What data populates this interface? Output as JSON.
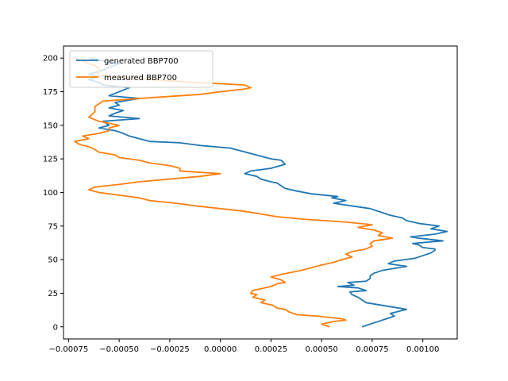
{
  "chart_data": {
    "type": "line",
    "title": "",
    "xlabel": "",
    "ylabel": "",
    "xlim": [
      -0.000775,
      0.00117
    ],
    "ylim": [
      209,
      -9
    ],
    "y_inverted": true,
    "grid": false,
    "legend_position": "top-left",
    "x_ticks": [
      {
        "value": -0.00075,
        "label": "−0.00075"
      },
      {
        "value": -0.0005,
        "label": "−0.00050"
      },
      {
        "value": -0.00025,
        "label": "−0.00025"
      },
      {
        "value": 0.0,
        "label": "0.00000"
      },
      {
        "value": 0.00025,
        "label": "0.00025"
      },
      {
        "value": 0.0005,
        "label": "0.00050"
      },
      {
        "value": 0.00075,
        "label": "0.00075"
      },
      {
        "value": 0.001,
        "label": "0.00100"
      }
    ],
    "y_ticks": [
      {
        "value": 0,
        "label": "0"
      },
      {
        "value": 25,
        "label": "25"
      },
      {
        "value": 50,
        "label": "50"
      },
      {
        "value": 75,
        "label": "75"
      },
      {
        "value": 100,
        "label": "100"
      },
      {
        "value": 125,
        "label": "125"
      },
      {
        "value": 150,
        "label": "150"
      },
      {
        "value": 175,
        "label": "175"
      },
      {
        "value": 200,
        "label": "200"
      }
    ],
    "series": [
      {
        "name": "generated BBP700",
        "color": "#1f77b4",
        "points": [
          [
            0.0007,
            0
          ],
          [
            0.00076,
            3
          ],
          [
            0.00082,
            6
          ],
          [
            0.00086,
            8
          ],
          [
            0.00084,
            10
          ],
          [
            0.00092,
            13
          ],
          [
            0.0008,
            16
          ],
          [
            0.00072,
            18
          ],
          [
            0.0007,
            20
          ],
          [
            0.00068,
            22
          ],
          [
            0.00065,
            24
          ],
          [
            0.00064,
            26
          ],
          [
            0.00072,
            27
          ],
          [
            0.00068,
            29
          ],
          [
            0.00058,
            30
          ],
          [
            0.00066,
            31
          ],
          [
            0.00063,
            33
          ],
          [
            0.00072,
            34
          ],
          [
            0.00074,
            36
          ],
          [
            0.00074,
            38
          ],
          [
            0.00076,
            40
          ],
          [
            0.0008,
            42
          ],
          [
            0.00088,
            44
          ],
          [
            0.00092,
            45
          ],
          [
            0.00083,
            47
          ],
          [
            0.00086,
            49
          ],
          [
            0.00096,
            51
          ],
          [
            0.001,
            53
          ],
          [
            0.00104,
            55
          ],
          [
            0.00106,
            57
          ],
          [
            0.00106,
            58
          ],
          [
            0.001,
            59
          ],
          [
            0.00098,
            61
          ],
          [
            0.00095,
            62
          ],
          [
            0.00102,
            63
          ],
          [
            0.0011,
            64
          ],
          [
            0.00098,
            66
          ],
          [
            0.00094,
            67
          ],
          [
            0.00106,
            69
          ],
          [
            0.00112,
            71
          ],
          [
            0.00104,
            73
          ],
          [
            0.00108,
            75
          ],
          [
            0.00098,
            77
          ],
          [
            0.00092,
            79
          ],
          [
            0.0009,
            81
          ],
          [
            0.00084,
            83
          ],
          [
            0.0008,
            85
          ],
          [
            0.00074,
            88
          ],
          [
            0.00065,
            90
          ],
          [
            0.00056,
            92
          ],
          [
            0.00062,
            94
          ],
          [
            0.00055,
            96
          ],
          [
            0.00058,
            97
          ],
          [
            0.00045,
            99
          ],
          [
            0.00038,
            101
          ],
          [
            0.00032,
            103
          ],
          [
            0.0003,
            105
          ],
          [
            0.00028,
            107
          ],
          [
            0.00025,
            108
          ],
          [
            0.0002,
            110
          ],
          [
            0.00018,
            112
          ],
          [
            0.00012,
            114
          ],
          [
            0.00015,
            116
          ],
          [
            0.0002,
            117
          ],
          [
            0.00025,
            118
          ],
          [
            0.00032,
            121
          ],
          [
            0.0003,
            124
          ],
          [
            0.00025,
            125
          ],
          [
            0.0002,
            127
          ],
          [
            0.00015,
            129
          ],
          [
            0.0001,
            131
          ],
          [
            5e-05,
            133
          ],
          [
            -0.0001,
            135
          ],
          [
            -0.0002,
            137
          ],
          [
            -0.00035,
            138
          ],
          [
            -0.0004,
            140
          ],
          [
            -0.00045,
            142
          ],
          [
            -0.00048,
            144
          ],
          [
            -0.00052,
            146
          ],
          [
            -0.0006,
            148
          ],
          [
            -0.00055,
            150
          ],
          [
            -0.00058,
            153
          ],
          [
            -0.0004,
            155
          ],
          [
            -0.00055,
            157
          ],
          [
            -0.00052,
            159
          ],
          [
            -0.00048,
            161
          ],
          [
            -0.00055,
            163
          ],
          [
            -0.0005,
            165
          ],
          [
            -0.00052,
            167
          ],
          [
            -0.0004,
            170
          ],
          [
            -0.00055,
            172
          ],
          [
            -0.0005,
            175
          ],
          [
            -0.00045,
            178
          ],
          [
            -0.00058,
            180
          ],
          [
            -0.0006,
            182
          ],
          [
            -0.00065,
            184
          ],
          [
            -0.0006,
            186
          ],
          [
            -0.00065,
            188
          ],
          [
            -0.0006,
            190
          ],
          [
            -0.00055,
            193
          ],
          [
            -0.0005,
            196
          ],
          [
            -0.00058,
            198
          ],
          [
            -0.00065,
            200
          ]
        ]
      },
      {
        "name": "measured BBP700",
        "color": "#ff7f0e",
        "points": [
          [
            0.00054,
            0
          ],
          [
            0.0005,
            2
          ],
          [
            0.00056,
            4
          ],
          [
            0.00062,
            5
          ],
          [
            0.0006,
            6
          ],
          [
            0.00048,
            8
          ],
          [
            0.00038,
            9
          ],
          [
            0.00034,
            11
          ],
          [
            0.00032,
            13
          ],
          [
            0.00028,
            14
          ],
          [
            0.00026,
            16
          ],
          [
            0.0002,
            18
          ],
          [
            0.00022,
            20
          ],
          [
            0.00016,
            22
          ],
          [
            0.00018,
            24
          ],
          [
            0.00015,
            25
          ],
          [
            0.00016,
            27
          ],
          [
            0.00022,
            29
          ],
          [
            0.00025,
            30
          ],
          [
            0.00028,
            32
          ],
          [
            0.00032,
            33
          ],
          [
            0.0003,
            35
          ],
          [
            0.00025,
            37
          ],
          [
            0.0003,
            39
          ],
          [
            0.0004,
            42
          ],
          [
            0.00045,
            44
          ],
          [
            0.0005,
            46
          ],
          [
            0.00056,
            48
          ],
          [
            0.0006,
            50
          ],
          [
            0.00065,
            52
          ],
          [
            0.00062,
            54
          ],
          [
            0.00065,
            56
          ],
          [
            0.00072,
            58
          ],
          [
            0.00075,
            60
          ],
          [
            0.00074,
            62
          ],
          [
            0.00076,
            64
          ],
          [
            0.00085,
            66
          ],
          [
            0.00078,
            68
          ],
          [
            0.0008,
            70
          ],
          [
            0.00076,
            72
          ],
          [
            0.00068,
            74
          ],
          [
            0.00075,
            76
          ],
          [
            0.00062,
            78
          ],
          [
            0.00042,
            80
          ],
          [
            0.00028,
            82
          ],
          [
            0.0002,
            84
          ],
          [
            0.00012,
            86
          ],
          [
            0.0,
            88
          ],
          [
            -0.00012,
            90
          ],
          [
            -0.00022,
            92
          ],
          [
            -0.00035,
            94
          ],
          [
            -0.0004,
            96
          ],
          [
            -0.0005,
            98
          ],
          [
            -0.0006,
            100
          ],
          [
            -0.00065,
            102
          ],
          [
            -0.00062,
            104
          ],
          [
            -0.0005,
            106
          ],
          [
            -0.0004,
            108
          ],
          [
            -0.00025,
            110
          ],
          [
            -0.0001,
            112
          ],
          [
            0.0,
            114
          ],
          [
            -0.0002,
            116
          ],
          [
            -0.0002,
            118
          ],
          [
            -0.00025,
            120
          ],
          [
            -0.00035,
            122
          ],
          [
            -0.0004,
            124
          ],
          [
            -0.0005,
            126
          ],
          [
            -0.00052,
            128
          ],
          [
            -0.0006,
            130
          ],
          [
            -0.00062,
            132
          ],
          [
            -0.00065,
            134
          ],
          [
            -0.0007,
            136
          ],
          [
            -0.00072,
            138
          ],
          [
            -0.00065,
            140
          ],
          [
            -0.00068,
            142
          ],
          [
            -0.0006,
            144
          ],
          [
            -0.00055,
            146
          ],
          [
            -0.00055,
            148
          ],
          [
            -0.0005,
            150
          ],
          [
            -0.0006,
            153
          ],
          [
            -0.00065,
            156
          ],
          [
            -0.00062,
            160
          ],
          [
            -0.00062,
            164
          ],
          [
            -0.00058,
            168
          ],
          [
            -0.0003,
            171
          ],
          [
            -0.0001,
            173
          ],
          [
            0.0,
            175
          ],
          [
            0.00012,
            177
          ],
          [
            0.00015,
            178
          ],
          [
            0.00012,
            180
          ],
          [
            -0.00025,
            183
          ],
          [
            -0.0004,
            185
          ],
          [
            -0.0006,
            187
          ],
          [
            -0.0006,
            190
          ],
          [
            -0.0006,
            193
          ],
          [
            -0.00065,
            196
          ],
          [
            -0.0007,
            199
          ],
          [
            -0.00072,
            200
          ]
        ]
      }
    ]
  }
}
